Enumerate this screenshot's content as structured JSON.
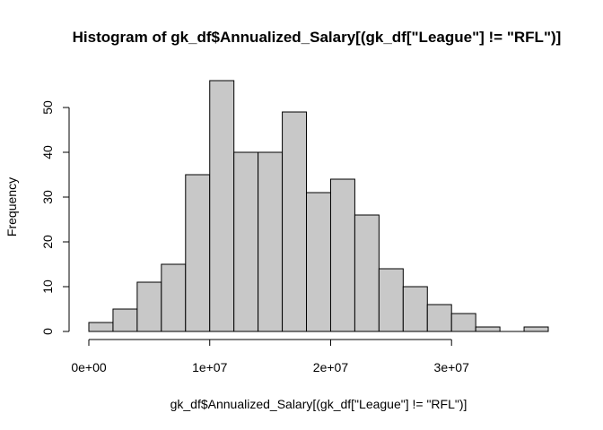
{
  "chart_data": {
    "type": "bar",
    "title": "Histogram of gk_df$Annualized_Salary[(gk_df[\"League\"] != \"RFL\")]",
    "xlabel": "gk_df$Annualized_Salary[(gk_df[\"League\"] != \"RFL\")]",
    "ylabel": "Frequency",
    "bin_width": 2000000,
    "bins": [
      {
        "start": 0,
        "end": 2000000,
        "count": 2
      },
      {
        "start": 2000000,
        "end": 4000000,
        "count": 5
      },
      {
        "start": 4000000,
        "end": 6000000,
        "count": 11
      },
      {
        "start": 6000000,
        "end": 8000000,
        "count": 15
      },
      {
        "start": 8000000,
        "end": 10000000,
        "count": 35
      },
      {
        "start": 10000000,
        "end": 12000000,
        "count": 56
      },
      {
        "start": 12000000,
        "end": 14000000,
        "count": 40
      },
      {
        "start": 14000000,
        "end": 16000000,
        "count": 40
      },
      {
        "start": 16000000,
        "end": 18000000,
        "count": 49
      },
      {
        "start": 18000000,
        "end": 20000000,
        "count": 31
      },
      {
        "start": 20000000,
        "end": 22000000,
        "count": 34
      },
      {
        "start": 22000000,
        "end": 24000000,
        "count": 26
      },
      {
        "start": 24000000,
        "end": 26000000,
        "count": 14
      },
      {
        "start": 26000000,
        "end": 28000000,
        "count": 10
      },
      {
        "start": 28000000,
        "end": 30000000,
        "count": 6
      },
      {
        "start": 30000000,
        "end": 32000000,
        "count": 4
      },
      {
        "start": 32000000,
        "end": 34000000,
        "count": 1
      },
      {
        "start": 34000000,
        "end": 36000000,
        "count": 0
      },
      {
        "start": 36000000,
        "end": 38000000,
        "count": 1
      }
    ],
    "xlim": [
      0,
      38000000
    ],
    "ylim": [
      0,
      56
    ],
    "x_ticks": [
      {
        "value": 0,
        "label": "0e+00"
      },
      {
        "value": 10000000,
        "label": "1e+07"
      },
      {
        "value": 20000000,
        "label": "2e+07"
      },
      {
        "value": 30000000,
        "label": "3e+07"
      }
    ],
    "y_ticks": [
      {
        "value": 0,
        "label": "0"
      },
      {
        "value": 10,
        "label": "10"
      },
      {
        "value": 20,
        "label": "20"
      },
      {
        "value": 30,
        "label": "30"
      },
      {
        "value": 40,
        "label": "40"
      },
      {
        "value": 50,
        "label": "50"
      }
    ],
    "grid": false,
    "bar_color": "#c8c8c8",
    "edge_color": "#000000"
  }
}
